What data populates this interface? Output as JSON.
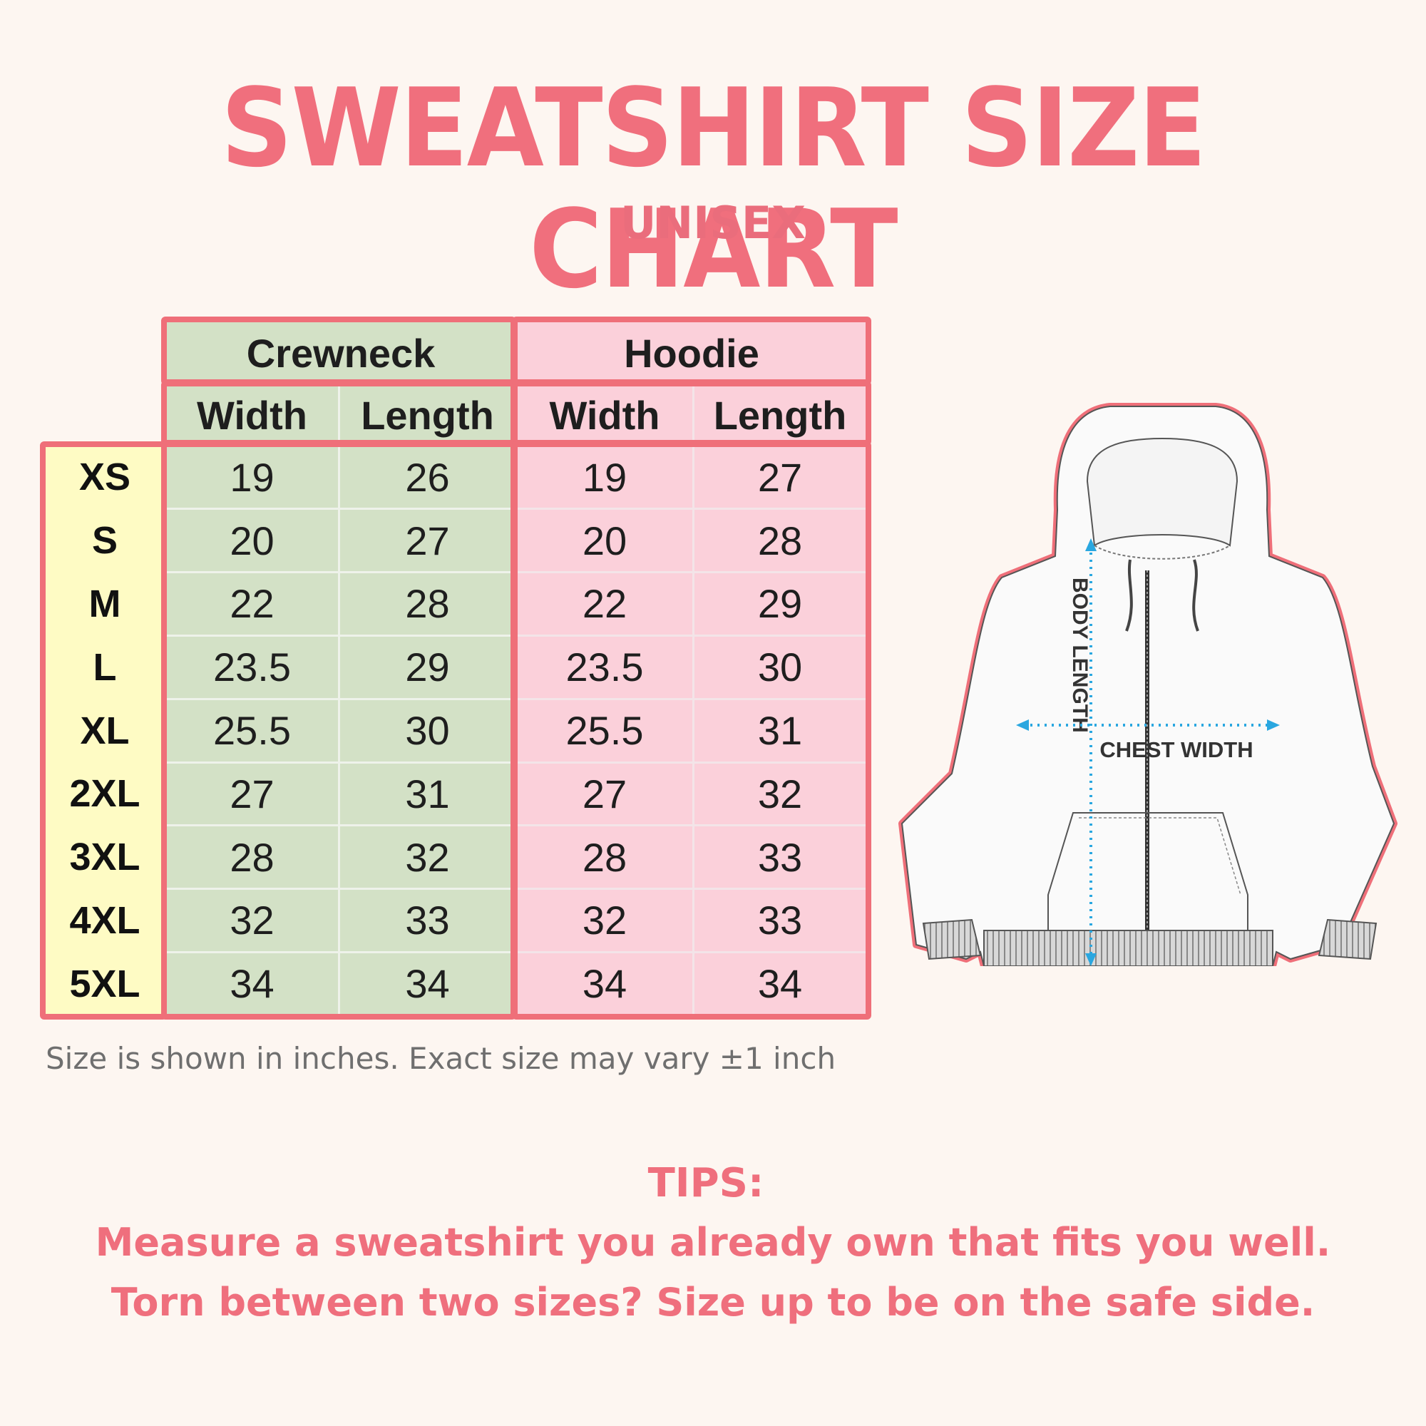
{
  "title": "SWEATSHIRT SIZE CHART",
  "subtitle": "UNISEX",
  "table": {
    "groups": [
      {
        "label": "Crewneck",
        "columns": [
          "Width",
          "Length"
        ]
      },
      {
        "label": "Hoodie",
        "columns": [
          "Width",
          "Length"
        ]
      }
    ],
    "rows": [
      {
        "size": "XS",
        "values": [
          "19",
          "26",
          "19",
          "27"
        ]
      },
      {
        "size": "S",
        "values": [
          "20",
          "27",
          "20",
          "28"
        ]
      },
      {
        "size": "M",
        "values": [
          "22",
          "28",
          "22",
          "29"
        ]
      },
      {
        "size": "L",
        "values": [
          "23.5",
          "29",
          "23.5",
          "30"
        ]
      },
      {
        "size": "XL",
        "values": [
          "25.5",
          "30",
          "25.5",
          "31"
        ]
      },
      {
        "size": "2XL",
        "values": [
          "27",
          "31",
          "27",
          "32"
        ]
      },
      {
        "size": "3XL",
        "values": [
          "28",
          "32",
          "28",
          "33"
        ]
      },
      {
        "size": "4XL",
        "values": [
          "32",
          "33",
          "32",
          "33"
        ]
      },
      {
        "size": "5XL",
        "values": [
          "34",
          "34",
          "34",
          "34"
        ]
      }
    ]
  },
  "note": "Size is shown in inches. Exact size may vary ±1 inch",
  "illustration": {
    "body_length_label": "BODY LENGTH",
    "chest_width_label": "CHEST WIDTH"
  },
  "tips": {
    "title": "TIPS:",
    "lines": [
      "Measure a sweatshirt you already own that fits you well.",
      "Torn between two sizes? Size up to be on the safe side."
    ]
  },
  "colors": {
    "accent": "#ef6f7d",
    "crewneck_bg": "#d3e1c6",
    "hoodie_bg": "#fbd0da",
    "size_bg": "#fefbc4",
    "background": "#fdf6f1"
  }
}
